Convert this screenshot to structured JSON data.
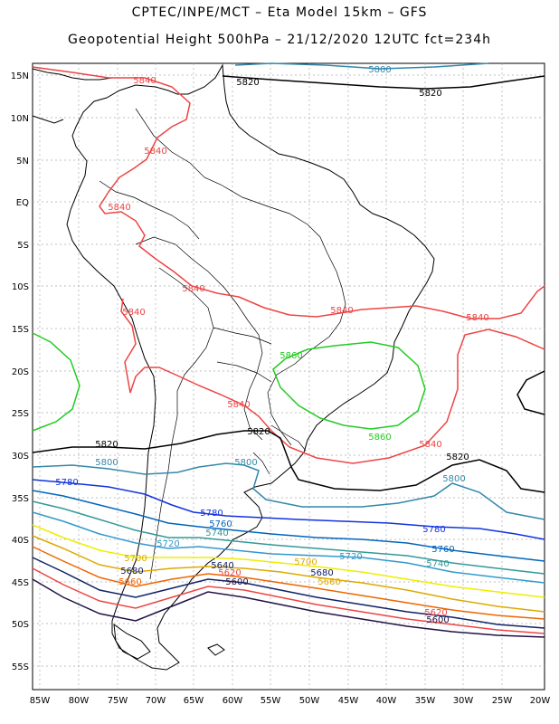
{
  "header": {
    "line1": "CPTEC/INPE/MCT –  Eta Model 15km – GFS",
    "line2": "Geopotential Height 500hPa – 21/12/2020 12UTC fct=234h"
  },
  "axes": {
    "lat_labels": [
      "15N",
      "10N",
      "5N",
      "EQ",
      "5S",
      "10S",
      "15S",
      "20S",
      "25S",
      "30S",
      "35S",
      "40S",
      "45S",
      "50S",
      "55S"
    ],
    "lon_labels": [
      "85W",
      "80W",
      "75W",
      "70W",
      "65W",
      "60W",
      "55W",
      "50W",
      "45W",
      "40W",
      "35W",
      "30W",
      "25W",
      "20W"
    ]
  },
  "contours": [
    {
      "level": "5860",
      "color": "#22cc22"
    },
    {
      "level": "5840",
      "color": "#ee4444"
    },
    {
      "level": "5820",
      "color": "#000000"
    },
    {
      "level": "5800",
      "color": "#3388aa"
    },
    {
      "level": "5780",
      "color": "#1133dd"
    },
    {
      "level": "5760",
      "color": "#0066bb"
    },
    {
      "level": "5740",
      "color": "#339999"
    },
    {
      "level": "5720",
      "color": "#3399cc"
    },
    {
      "level": "5700",
      "color": "#eeee00"
    },
    {
      "level": "5680",
      "color": "#ddaa00"
    },
    {
      "level": "5660",
      "color": "#ee6600"
    },
    {
      "level": "5640",
      "color": "#112266"
    },
    {
      "level": "5620",
      "color": "#ee4444"
    },
    {
      "level": "5600",
      "color": "#221144"
    }
  ]
}
